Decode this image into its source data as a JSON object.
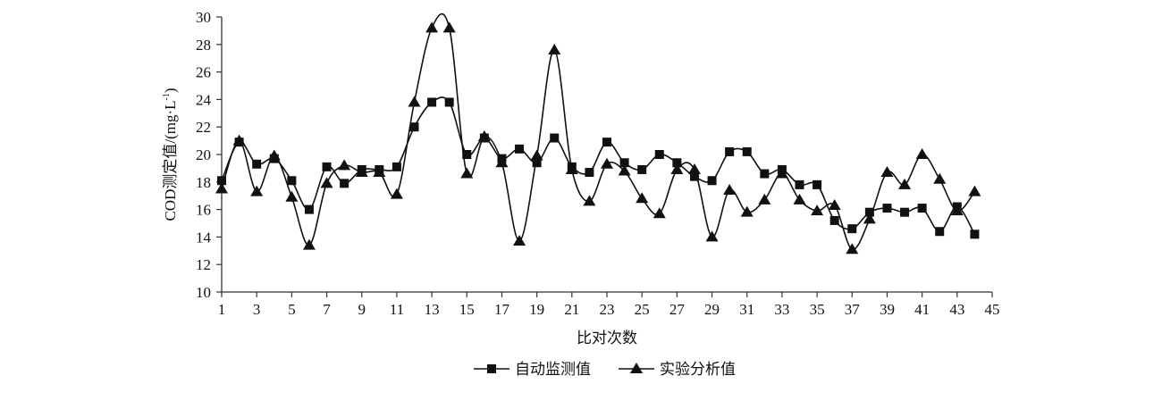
{
  "chart_data": {
    "type": "line",
    "title": "",
    "xlabel": "比对次数",
    "ylabel": "COD测定值/(mg·L",
    "ylabel_sup": "-1",
    "ylabel_end": ")",
    "xlim": [
      1,
      45
    ],
    "ylim": [
      10,
      30
    ],
    "xticks": [
      1,
      3,
      5,
      7,
      9,
      11,
      13,
      15,
      17,
      19,
      21,
      23,
      25,
      27,
      29,
      31,
      33,
      35,
      37,
      39,
      41,
      43,
      45
    ],
    "yticks": [
      10,
      12,
      14,
      16,
      18,
      20,
      22,
      24,
      26,
      28,
      30
    ],
    "grid": false,
    "legend_position": "bottom",
    "series": [
      {
        "name": "自动监测值",
        "marker": "square",
        "color": "#111111",
        "values": [
          18.1,
          20.9,
          19.3,
          19.7,
          18.1,
          16.0,
          19.1,
          17.9,
          18.9,
          18.9,
          19.1,
          22.0,
          23.8,
          23.8,
          20.0,
          21.2,
          19.7,
          20.4,
          19.4,
          21.2,
          19.1,
          18.7,
          20.9,
          19.4,
          18.9,
          20.0,
          19.4,
          18.4,
          18.1,
          20.2,
          20.2,
          18.6,
          18.9,
          17.8,
          17.8,
          15.2,
          14.6,
          15.8,
          16.1,
          15.8,
          16.1,
          14.4,
          16.2,
          14.2
        ]
      },
      {
        "name": "实验分析值",
        "marker": "triangle",
        "color": "#111111",
        "values": [
          17.5,
          21.0,
          17.3,
          19.9,
          16.9,
          13.4,
          17.9,
          19.2,
          18.7,
          18.7,
          17.1,
          23.8,
          29.2,
          29.2,
          18.6,
          21.3,
          19.4,
          13.7,
          19.9,
          27.6,
          18.9,
          16.6,
          19.3,
          18.8,
          16.8,
          15.7,
          18.9,
          18.9,
          14.0,
          17.4,
          15.8,
          16.7,
          18.6,
          16.7,
          15.9,
          16.3,
          13.1,
          15.3,
          18.7,
          17.8,
          20.0,
          18.2,
          15.9,
          17.3
        ]
      }
    ]
  }
}
